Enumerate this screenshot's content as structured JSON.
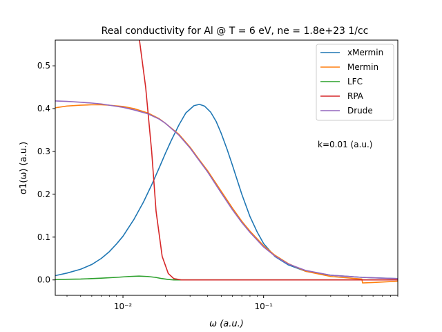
{
  "chart_data": {
    "type": "line",
    "title": "Real conductivity for Al @ T = 6 eV, ne = 1.8e+23 1/cc",
    "xlabel": "ω (a.u.)",
    "ylabel": "σ1(ω) (a.u.)",
    "xscale": "log",
    "xlim": [
      0.0033,
      0.9
    ],
    "ylim": [
      -0.036,
      0.56
    ],
    "xticks": [
      {
        "value": 0.01,
        "label": "10⁻²"
      },
      {
        "value": 0.1,
        "label": "10⁻¹"
      }
    ],
    "yticks": [
      {
        "value": 0.0,
        "label": "0.0"
      },
      {
        "value": 0.1,
        "label": "0.1"
      },
      {
        "value": 0.2,
        "label": "0.2"
      },
      {
        "value": 0.3,
        "label": "0.3"
      },
      {
        "value": 0.4,
        "label": "0.4"
      },
      {
        "value": 0.5,
        "label": "0.5"
      }
    ],
    "legend_position": "top-right",
    "annotation": "k=0.01 (a.u.)",
    "series": [
      {
        "name": "xMermin",
        "color": "#1f77b4",
        "x": [
          0.0033,
          0.004,
          0.005,
          0.006,
          0.007,
          0.008,
          0.009,
          0.01,
          0.012,
          0.014,
          0.016,
          0.018,
          0.02,
          0.022,
          0.025,
          0.028,
          0.032,
          0.035,
          0.038,
          0.042,
          0.046,
          0.05,
          0.055,
          0.06,
          0.07,
          0.08,
          0.09,
          0.1,
          0.12,
          0.15,
          0.2,
          0.3,
          0.5,
          0.9
        ],
        "y": [
          0.01,
          0.016,
          0.025,
          0.036,
          0.05,
          0.066,
          0.084,
          0.102,
          0.142,
          0.182,
          0.222,
          0.26,
          0.295,
          0.325,
          0.362,
          0.39,
          0.407,
          0.41,
          0.406,
          0.392,
          0.37,
          0.342,
          0.305,
          0.268,
          0.2,
          0.148,
          0.112,
          0.085,
          0.055,
          0.035,
          0.02,
          0.011,
          0.006,
          0.003
        ]
      },
      {
        "name": "Mermin",
        "color": "#ff7f0e",
        "x": [
          0.0033,
          0.004,
          0.005,
          0.006,
          0.007,
          0.008,
          0.01,
          0.012,
          0.015,
          0.018,
          0.02,
          0.025,
          0.03,
          0.035,
          0.04,
          0.05,
          0.06,
          0.07,
          0.08,
          0.1,
          0.12,
          0.15,
          0.2,
          0.3,
          0.5,
          0.505,
          0.6,
          0.9
        ],
        "y": [
          0.402,
          0.406,
          0.408,
          0.409,
          0.409,
          0.408,
          0.405,
          0.4,
          0.39,
          0.377,
          0.366,
          0.34,
          0.31,
          0.28,
          0.255,
          0.207,
          0.168,
          0.137,
          0.114,
          0.08,
          0.058,
          0.038,
          0.02,
          0.008,
          0.002,
          -0.007,
          -0.006,
          -0.003
        ]
      },
      {
        "name": "LFC",
        "color": "#2ca02c",
        "x": [
          0.0033,
          0.005,
          0.007,
          0.009,
          0.011,
          0.013,
          0.015,
          0.017,
          0.019,
          0.021,
          0.023,
          0.025,
          0.03,
          0.05,
          0.1,
          0.3,
          0.9
        ],
        "y": [
          0.001,
          0.002,
          0.004,
          0.006,
          0.008,
          0.009,
          0.008,
          0.006,
          0.003,
          0.001,
          0.0,
          0.0,
          0.0,
          0.0,
          0.0,
          0.0,
          0.0
        ]
      },
      {
        "name": "RPA",
        "color": "#d62728",
        "x": [
          0.0131,
          0.0145,
          0.016,
          0.0172,
          0.019,
          0.021,
          0.023,
          0.026,
          0.035,
          0.05,
          0.1,
          0.3,
          0.9
        ],
        "y": [
          0.56,
          0.45,
          0.3,
          0.16,
          0.055,
          0.015,
          0.003,
          0.0,
          0.0,
          0.0,
          0.0,
          0.0,
          0.0
        ]
      },
      {
        "name": "Drude",
        "color": "#9467bd",
        "x": [
          0.0033,
          0.004,
          0.005,
          0.006,
          0.007,
          0.008,
          0.01,
          0.012,
          0.015,
          0.018,
          0.02,
          0.025,
          0.03,
          0.035,
          0.04,
          0.05,
          0.06,
          0.07,
          0.08,
          0.1,
          0.12,
          0.15,
          0.2,
          0.3,
          0.5,
          0.7,
          0.9
        ],
        "y": [
          0.418,
          0.417,
          0.415,
          0.413,
          0.411,
          0.408,
          0.403,
          0.397,
          0.388,
          0.376,
          0.366,
          0.338,
          0.308,
          0.278,
          0.252,
          0.203,
          0.164,
          0.134,
          0.111,
          0.077,
          0.056,
          0.037,
          0.022,
          0.011,
          0.006,
          0.004,
          0.003
        ]
      }
    ]
  }
}
